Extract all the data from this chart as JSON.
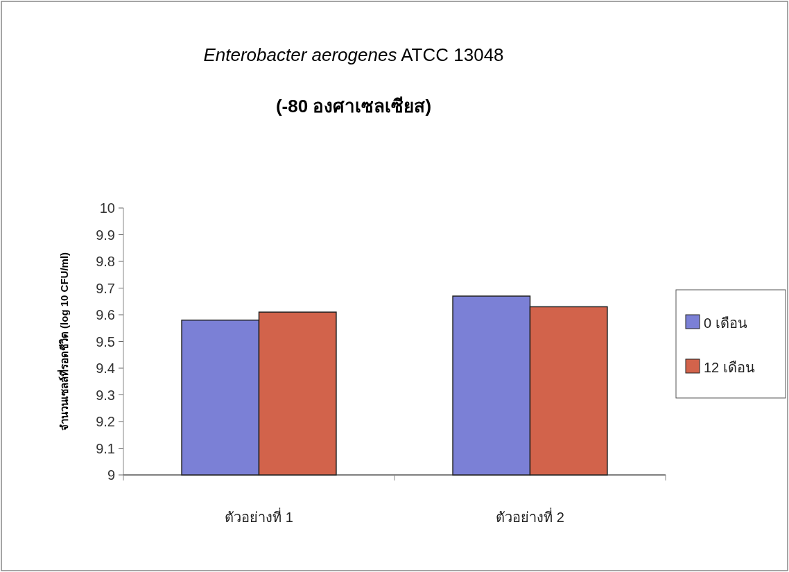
{
  "chart_data": {
    "type": "bar",
    "title": "Enterobacter aerogenes  ATCC 13048",
    "subtitle": "(-80 องศาเซลเซียส)",
    "ylabel": "จำนวนเซลล์ที่รอดชีวิต (log 10 CFU/ml)",
    "categories": [
      "ตัวอย่างที่ 1",
      "ตัวอย่างที่ 2"
    ],
    "series": [
      {
        "name": "0 เดือน",
        "color": "#7b80d6",
        "values": [
          9.58,
          9.67
        ]
      },
      {
        "name": "12 เดือน",
        "color": "#d2634b",
        "values": [
          9.61,
          9.63
        ]
      }
    ],
    "ylim": [
      9,
      10
    ],
    "yticks": [
      9,
      9.1,
      9.2,
      9.3,
      9.4,
      9.5,
      9.6,
      9.7,
      9.8,
      9.9,
      10
    ],
    "grid": false,
    "legend": "right"
  }
}
